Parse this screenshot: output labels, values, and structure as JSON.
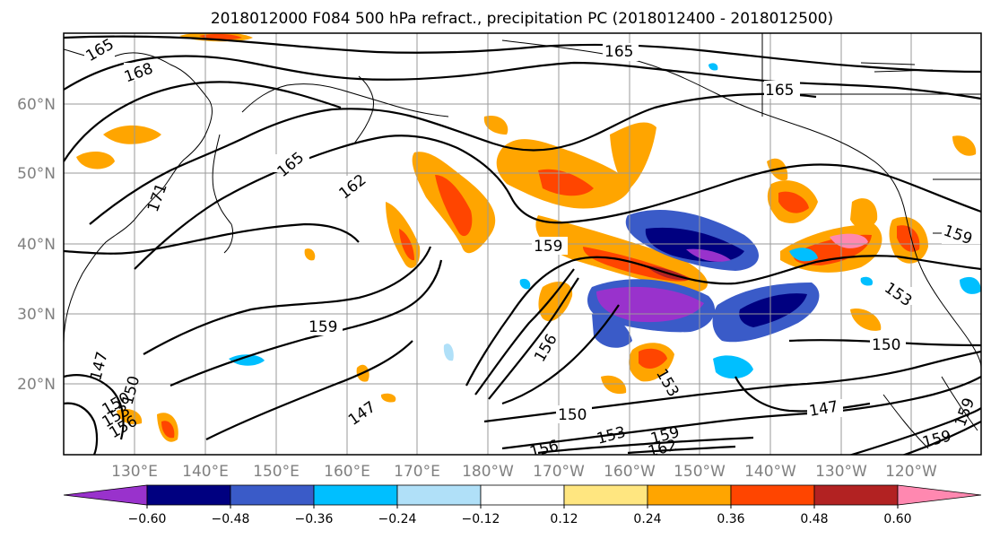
{
  "title": "2018012000 F084 500 hPa refract., precipitation PC (2018012400 - 2018012500)",
  "latitude_labels": [
    "60°N",
    "50°N",
    "40°N",
    "30°N",
    "20°N"
  ],
  "longitude_labels": [
    "130°E",
    "140°E",
    "150°E",
    "160°E",
    "170°E",
    "180°W",
    "170°W",
    "160°W",
    "150°W",
    "140°W",
    "130°W",
    "120°W"
  ],
  "colorbar": {
    "tick_labels": [
      "−0.60",
      "−0.48",
      "−0.36",
      "−0.24",
      "−0.12",
      "0.12",
      "0.24",
      "0.36",
      "0.48",
      "0.60"
    ],
    "colors": [
      "#9932cc",
      "#000080",
      "#3a5bc8",
      "#00bfff",
      "#b0e0f8",
      "#ffffff",
      "#ffe680",
      "#ffa500",
      "#ff4500",
      "#b22222",
      "#ff88b0"
    ]
  },
  "contour_labels": [
    {
      "text": "165"
    },
    {
      "text": "168"
    },
    {
      "text": "165"
    },
    {
      "text": "165"
    },
    {
      "text": "165"
    },
    {
      "text": "162"
    },
    {
      "text": "171"
    },
    {
      "text": "159"
    },
    {
      "text": "159"
    },
    {
      "text": "159"
    },
    {
      "text": "156"
    },
    {
      "text": "153"
    },
    {
      "text": "150"
    },
    {
      "text": "150"
    },
    {
      "text": "147"
    },
    {
      "text": "147"
    },
    {
      "text": "150"
    },
    {
      "text": "147"
    },
    {
      "text": "156"
    },
    {
      "text": "153"
    },
    {
      "text": "153"
    },
    {
      "text": "159"
    },
    {
      "text": "162"
    },
    {
      "text": "159"
    },
    {
      "text": "159"
    },
    {
      "text": "150"
    },
    {
      "text": "156"
    },
    {
      "text": "153"
    }
  ]
}
